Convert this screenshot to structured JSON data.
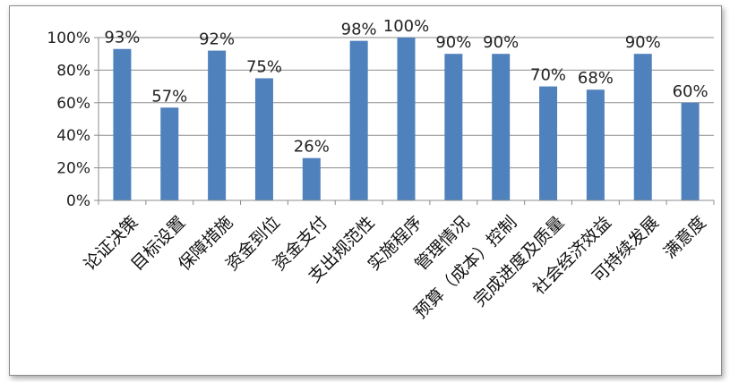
{
  "chart_data": {
    "type": "bar",
    "title": "",
    "xlabel": "",
    "ylabel": "",
    "categories": [
      "论证决策",
      "目标设置",
      "保障措施",
      "资金到位",
      "资金支付",
      "支出规范性",
      "实施程序",
      "管理情况",
      "预算（成本）控制",
      "完成进度及质量",
      "社会经济效益",
      "可持续发展",
      "满意度"
    ],
    "values": [
      93,
      57,
      92,
      75,
      26,
      98,
      100,
      90,
      90,
      70,
      68,
      90,
      60
    ],
    "data_labels": [
      "93%",
      "57%",
      "92%",
      "75%",
      "26%",
      "98%",
      "100%",
      "90%",
      "90%",
      "70%",
      "68%",
      "90%",
      "60%"
    ],
    "ylim": [
      0,
      100
    ],
    "yticks": [
      "0%",
      "20%",
      "40%",
      "60%",
      "80%",
      "100%"
    ],
    "grid": true,
    "legend": "none",
    "bar_color": "#4f81bd",
    "grid_color": "#8c8c8c"
  }
}
